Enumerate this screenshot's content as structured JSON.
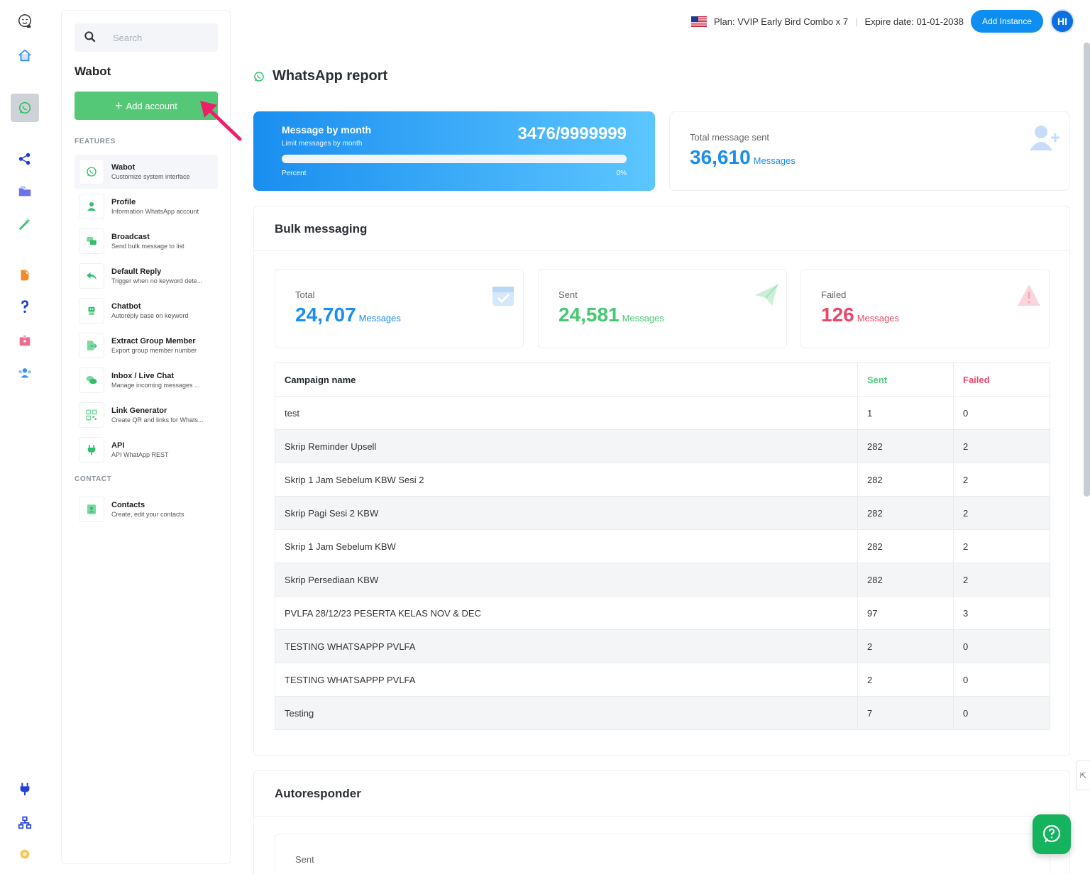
{
  "topbar": {
    "plan": "Plan: VVIP Early Bird Combo x 7",
    "separator": "|",
    "expire": "Expire date: 01-01-2038",
    "add_instance": "Add Instance",
    "avatar_initials": "HI"
  },
  "sidebar": {
    "search_placeholder": "Search",
    "title": "Wabot",
    "add_account_label": "Add account",
    "features_label": "FEATURES",
    "contact_label": "CONTACT",
    "items": [
      {
        "title": "Wabot",
        "sub": "Customize system interface",
        "icon": "whatsapp-icon"
      },
      {
        "title": "Profile",
        "sub": "Information WhatsApp account",
        "icon": "user-icon"
      },
      {
        "title": "Broadcast",
        "sub": "Send bulk message to list",
        "icon": "broadcast-icon"
      },
      {
        "title": "Default Reply",
        "sub": "Trigger when no keyword dete...",
        "icon": "reply-icon"
      },
      {
        "title": "Chatbot",
        "sub": "Autoreply base on keyword",
        "icon": "robot-icon"
      },
      {
        "title": "Extract Group Member",
        "sub": "Export group member number",
        "icon": "export-icon"
      },
      {
        "title": "Inbox / Live Chat",
        "sub": "Manage incoming messages ...",
        "icon": "chat-icon"
      },
      {
        "title": "Link Generator",
        "sub": "Create QR and links for Whats...",
        "icon": "qr-icon"
      },
      {
        "title": "API",
        "sub": "API WhatApp REST",
        "icon": "plug-icon"
      }
    ],
    "contacts": {
      "title": "Contacts",
      "sub": "Create, edit your contacts",
      "icon": "contact-icon"
    }
  },
  "page": {
    "title": "WhatsApp report"
  },
  "month_card": {
    "title": "Message by month",
    "subtitle": "Limit messages by month",
    "value": "3476/9999999",
    "percent_label": "Percent",
    "percent_value": "0%",
    "progress_fraction": 0.0
  },
  "total_card": {
    "label": "Total message sent",
    "value": "36,610",
    "unit": "Messages"
  },
  "bulk": {
    "title": "Bulk messaging",
    "stats": [
      {
        "label": "Total",
        "value": "24,707",
        "unit": "Messages",
        "color": "#1a8ef0"
      },
      {
        "label": "Sent",
        "value": "24,581",
        "unit": "Messages",
        "color": "#45c873"
      },
      {
        "label": "Failed",
        "value": "126",
        "unit": "Messages",
        "color": "#e8486b"
      }
    ],
    "columns": [
      "Campaign name",
      "Sent",
      "Failed"
    ],
    "rows": [
      [
        "test",
        "1",
        "0"
      ],
      [
        "Skrip Reminder Upsell",
        "282",
        "2"
      ],
      [
        "Skrip 1 Jam Sebelum KBW Sesi 2",
        "282",
        "2"
      ],
      [
        "Skrip Pagi Sesi 2 KBW",
        "282",
        "2"
      ],
      [
        "Skrip 1 Jam Sebelum KBW",
        "282",
        "2"
      ],
      [
        "Skrip Persediaan KBW",
        "282",
        "2"
      ],
      [
        "PVLFA 28/12/23 PESERTA KELAS NOV & DEC",
        "97",
        "3"
      ],
      [
        "TESTING WHATSAPPP PVLFA",
        "2",
        "0"
      ],
      [
        "TESTING WHATSAPPP PVLFA",
        "2",
        "0"
      ],
      [
        "Testing",
        "7",
        "0"
      ]
    ]
  },
  "autoresponder": {
    "title": "Autoresponder",
    "sent_label": "Sent"
  },
  "colors": {
    "accent_blue": "#1a8ef0",
    "green": "#55c878",
    "red": "#e8486b"
  }
}
